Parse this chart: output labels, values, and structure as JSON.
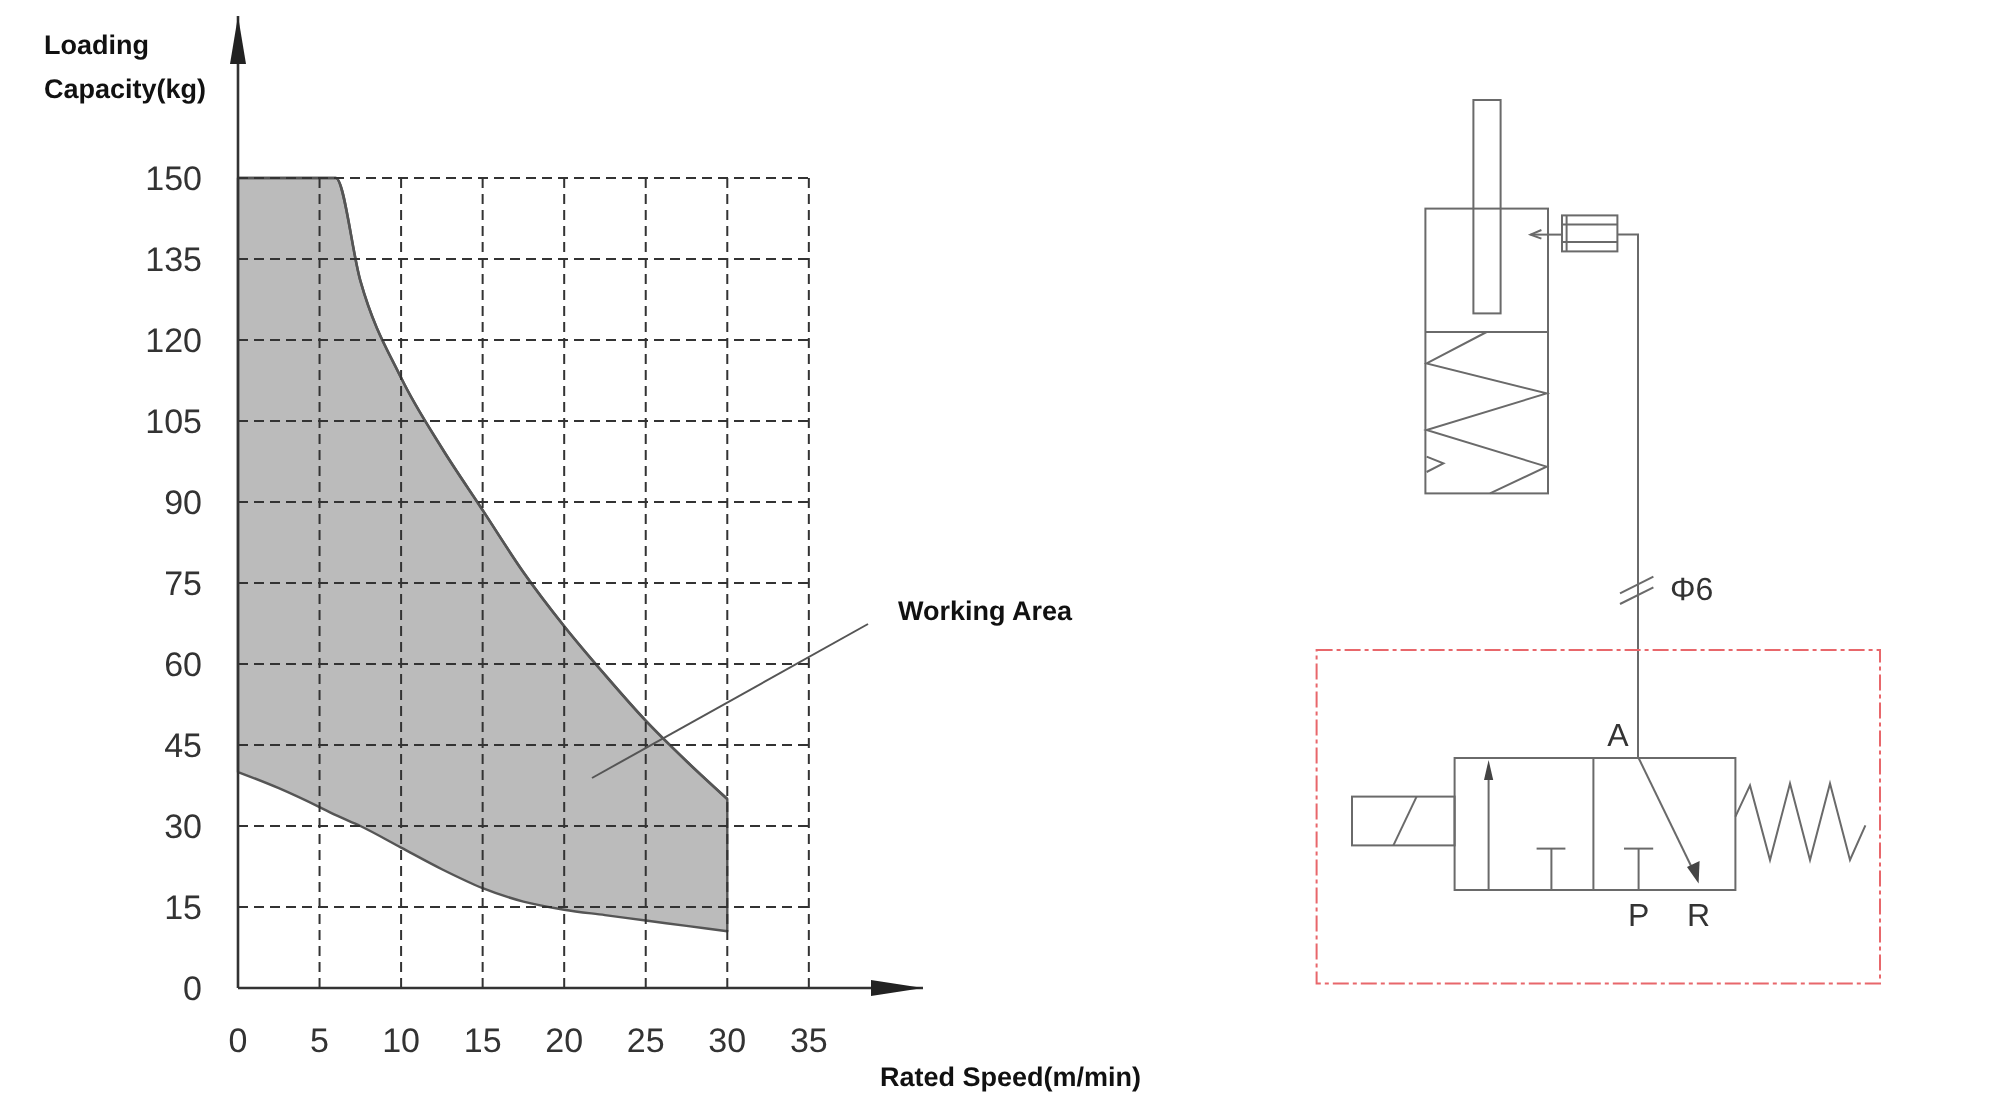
{
  "chart_data": {
    "type": "line",
    "xlabel": "Rated Speed(m/min)",
    "ylabel": "Loading Capacity(kg)",
    "x": [
      0,
      2.5,
      5,
      6,
      7.5,
      10,
      12.5,
      15,
      17.5,
      20,
      22.5,
      25,
      27.5,
      30
    ],
    "series": [
      {
        "color": "#555555",
        "values": [
          150,
          150,
          150,
          150,
          131,
          113,
          100,
          88.5,
          77,
          67,
          58,
          49.5,
          42,
          35
        ],
        "lower": [
          40,
          37,
          33.5,
          32,
          30,
          26,
          22,
          18.5,
          16,
          14.5,
          13.5,
          12.5,
          11.5,
          10.5
        ],
        "upper": [
          150,
          150,
          150,
          150,
          131,
          113,
          100,
          88.5,
          77,
          67,
          58,
          49.5,
          42,
          35
        ]
      }
    ],
    "xlim": [
      0,
      42
    ],
    "ylim": [
      0,
      180
    ],
    "xticks": [
      0,
      5,
      10,
      15,
      20,
      25,
      30,
      35
    ],
    "yticks": [
      0,
      15,
      30,
      45,
      60,
      75,
      90,
      105,
      120,
      135,
      150
    ],
    "grid": true,
    "annotations": [
      "Working Area",
      "Φ6",
      "A",
      "P",
      "R"
    ]
  }
}
